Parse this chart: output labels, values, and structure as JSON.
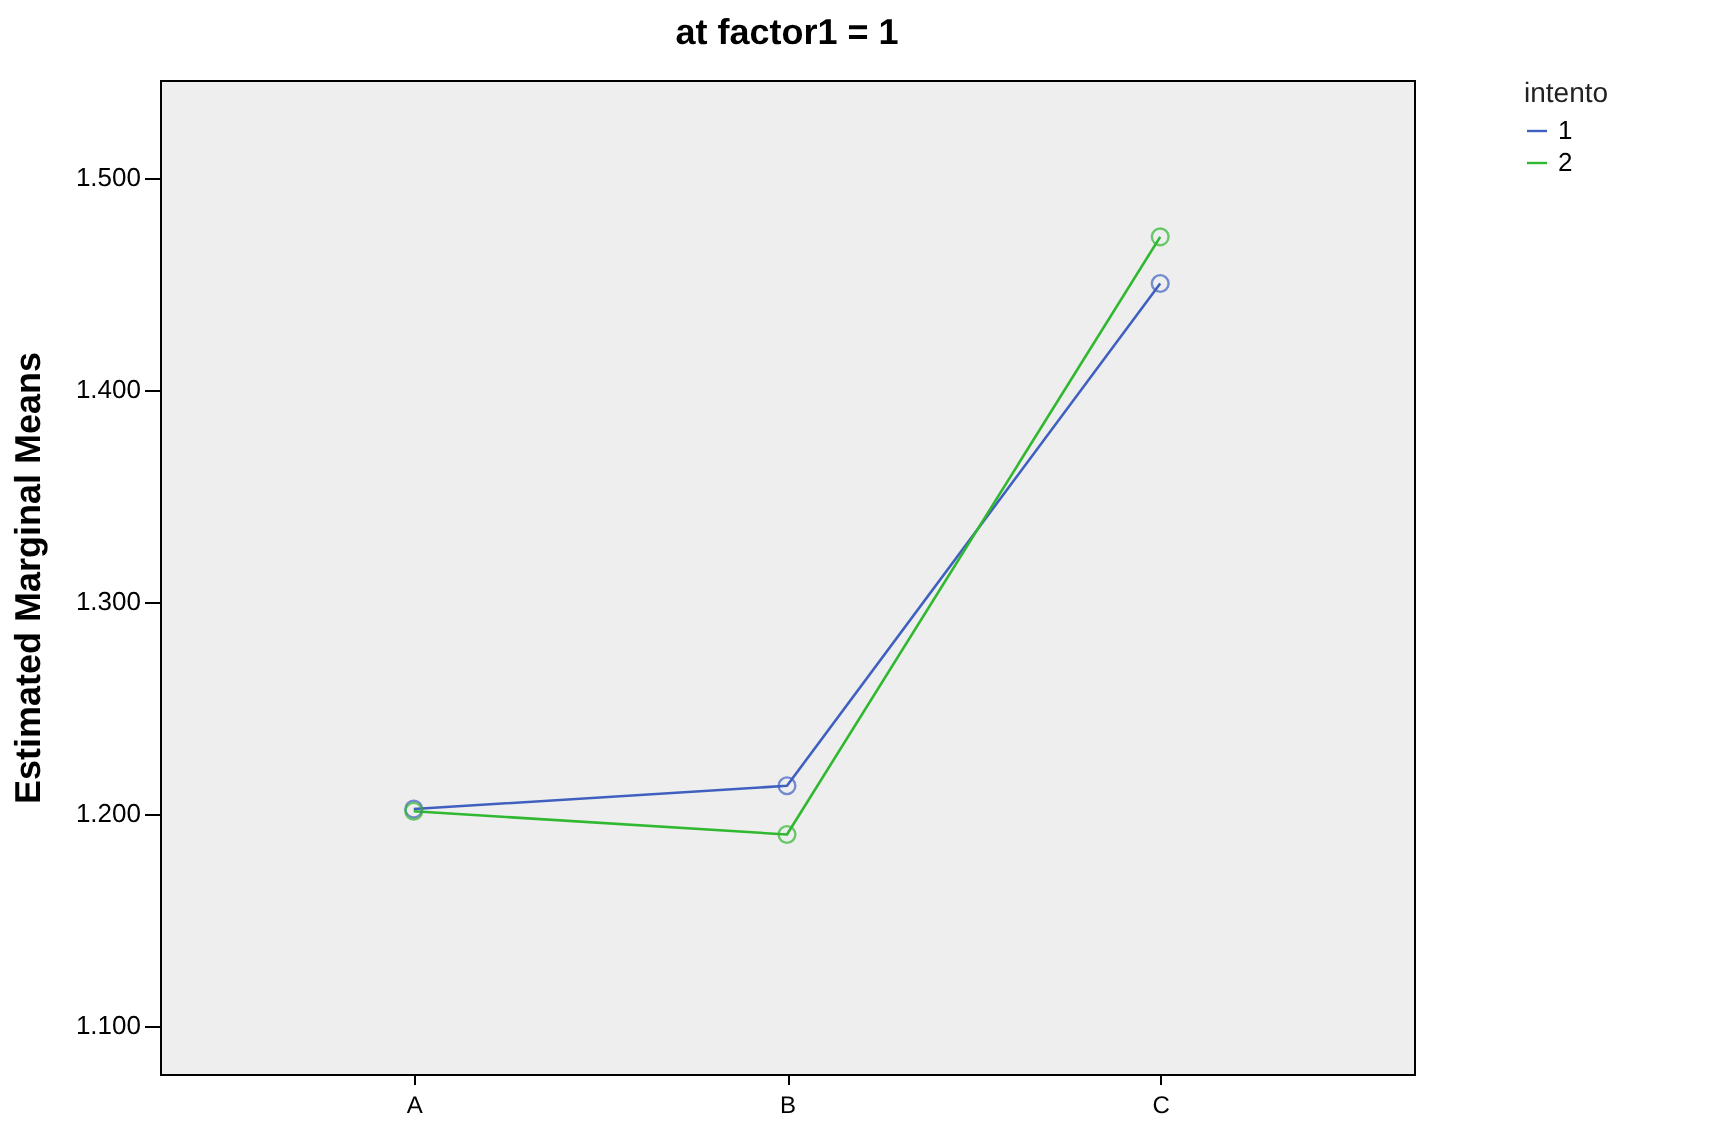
{
  "chart_data": {
    "type": "line",
    "title": "at factor1 = 1",
    "ylabel": "Estimated Marginal Means",
    "legend_title": "intento",
    "categories": [
      "A",
      "B",
      "C"
    ],
    "series": [
      {
        "name": "1",
        "color": "#4060c0",
        "values": [
          1.202,
          1.213,
          1.45
        ]
      },
      {
        "name": "2",
        "color": "#30b830",
        "values": [
          1.201,
          1.19,
          1.472
        ]
      }
    ],
    "ylim": [
      1.077,
      1.546
    ],
    "yticks": [
      {
        "value": 1.1,
        "label": "1.100"
      },
      {
        "value": 1.2,
        "label": "1.200"
      },
      {
        "value": 1.3,
        "label": "1.300"
      },
      {
        "value": 1.4,
        "label": "1.400"
      },
      {
        "value": 1.5,
        "label": "1.500"
      }
    ],
    "grid": false,
    "legend": "top right",
    "marker": "circle",
    "line_style": "solid"
  }
}
